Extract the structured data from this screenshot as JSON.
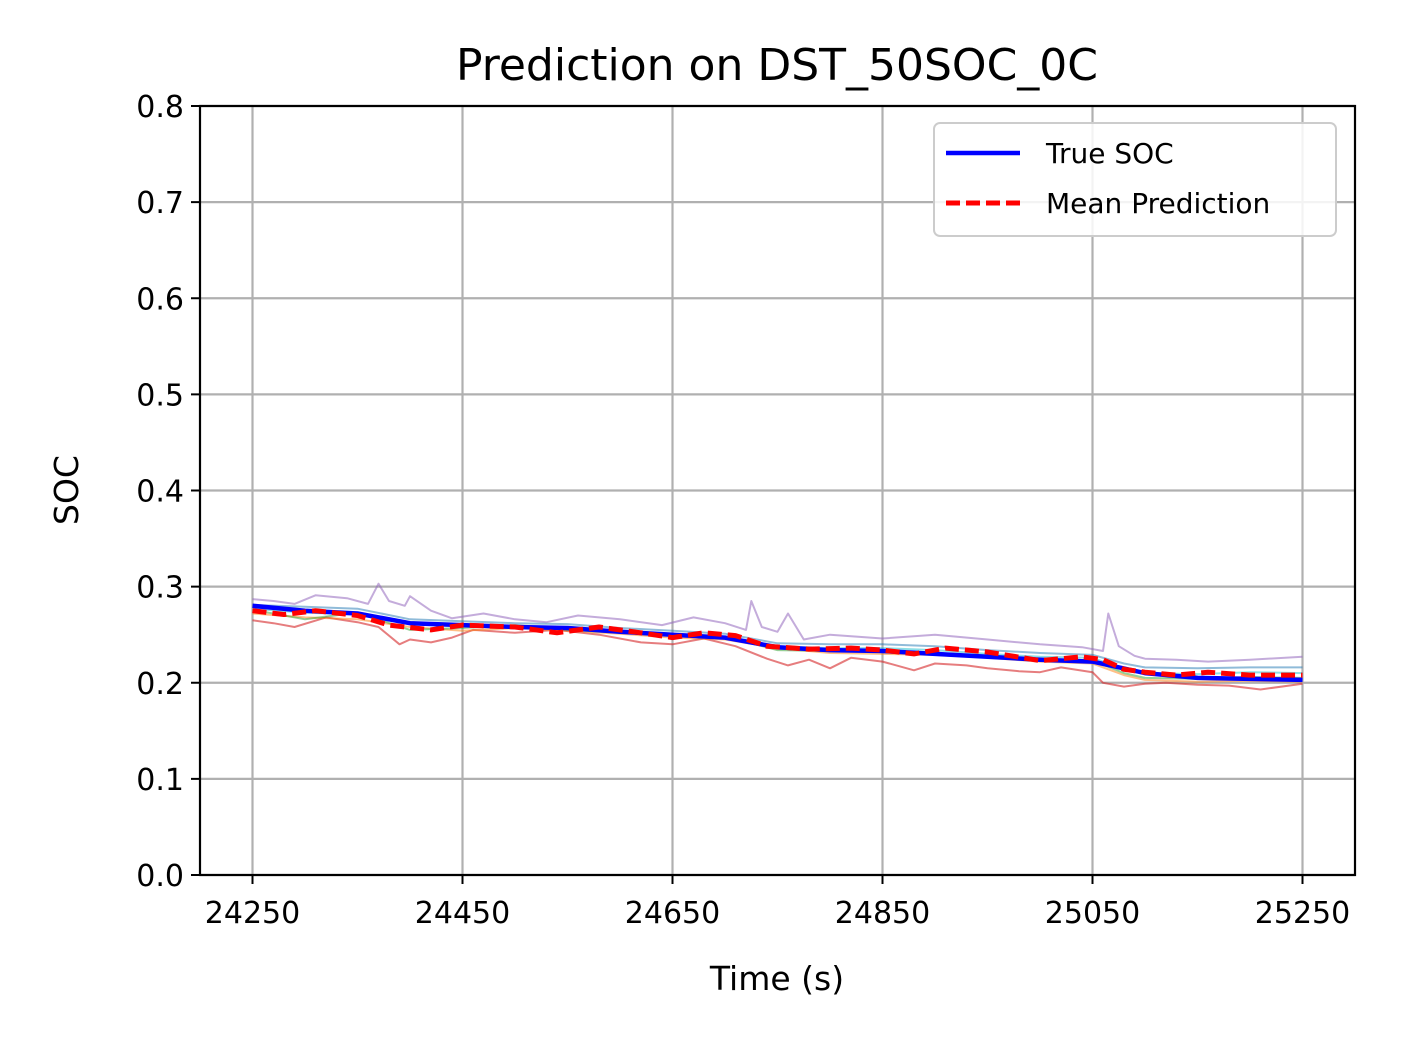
{
  "chart_data": {
    "type": "line",
    "title": "Prediction on DST_50SOC_0C",
    "xlabel": "Time (s)",
    "ylabel": "SOC",
    "xlim": [
      24200,
      25300
    ],
    "ylim": [
      0.0,
      0.8
    ],
    "xticks": [
      24250,
      24450,
      24650,
      24850,
      25050,
      25250
    ],
    "xtick_labels": [
      "24250",
      "24450",
      "24650",
      "24850",
      "25050",
      "25250"
    ],
    "yticks": [
      0.0,
      0.1,
      0.2,
      0.3,
      0.4,
      0.5,
      0.6,
      0.7,
      0.8
    ],
    "ytick_labels": [
      "0.0",
      "0.1",
      "0.2",
      "0.3",
      "0.4",
      "0.5",
      "0.6",
      "0.7",
      "0.8"
    ],
    "grid": true,
    "legend_position": "top-right",
    "legend": [
      {
        "label": "True SOC",
        "color": "#0000ff",
        "style": "solid"
      },
      {
        "label": "Mean Prediction",
        "color": "#ff0000",
        "style": "dashed"
      }
    ],
    "series": [
      {
        "name": "True SOC",
        "color": "#0000ff",
        "style": "solid",
        "width": 4.5,
        "opacity": 1,
        "x": [
          24250,
          24300,
          24350,
          24400,
          24450,
          24500,
          24550,
          24600,
          24650,
          24700,
          24750,
          24800,
          24850,
          24900,
          24950,
          25000,
          25050,
          25100,
          25150,
          25200,
          25250
        ],
        "y": [
          0.28,
          0.275,
          0.272,
          0.262,
          0.26,
          0.258,
          0.257,
          0.253,
          0.25,
          0.247,
          0.237,
          0.234,
          0.233,
          0.23,
          0.227,
          0.224,
          0.222,
          0.21,
          0.205,
          0.204,
          0.203
        ]
      },
      {
        "name": "Mean Prediction",
        "color": "#ff0000",
        "style": "dashed",
        "width": 5,
        "opacity": 1,
        "x": [
          24250,
          24280,
          24310,
          24350,
          24380,
          24420,
          24450,
          24500,
          24540,
          24580,
          24620,
          24650,
          24680,
          24710,
          24740,
          24780,
          24820,
          24850,
          24880,
          24910,
          24950,
          25000,
          25040,
          25060,
          25080,
          25100,
          25130,
          25160,
          25200,
          25250
        ],
        "y": [
          0.275,
          0.271,
          0.275,
          0.27,
          0.26,
          0.255,
          0.26,
          0.258,
          0.252,
          0.258,
          0.252,
          0.247,
          0.252,
          0.249,
          0.238,
          0.235,
          0.236,
          0.234,
          0.23,
          0.236,
          0.232,
          0.223,
          0.227,
          0.224,
          0.214,
          0.211,
          0.208,
          0.211,
          0.208,
          0.208
        ]
      },
      {
        "name": "",
        "color": "#9467bd",
        "style": "solid",
        "width": 2,
        "opacity": 0.55,
        "x": [
          24250,
          24270,
          24290,
          24310,
          24340,
          24360,
          24370,
          24380,
          24395,
          24400,
          24420,
          24440,
          24470,
          24500,
          24530,
          24560,
          24600,
          24640,
          24670,
          24700,
          24720,
          24725,
          24735,
          24750,
          24760,
          24775,
          24800,
          24850,
          24900,
          24950,
          25000,
          25040,
          25060,
          25065,
          25075,
          25090,
          25100,
          25130,
          25160,
          25200,
          25250
        ],
        "y": [
          0.287,
          0.285,
          0.282,
          0.291,
          0.288,
          0.282,
          0.303,
          0.285,
          0.28,
          0.29,
          0.275,
          0.267,
          0.272,
          0.266,
          0.263,
          0.27,
          0.266,
          0.26,
          0.268,
          0.262,
          0.255,
          0.285,
          0.258,
          0.253,
          0.272,
          0.245,
          0.25,
          0.246,
          0.25,
          0.245,
          0.24,
          0.237,
          0.233,
          0.272,
          0.238,
          0.228,
          0.225,
          0.224,
          0.222,
          0.224,
          0.227
        ]
      },
      {
        "name": "",
        "color": "#d62728",
        "style": "solid",
        "width": 2,
        "opacity": 0.6,
        "x": [
          24250,
          24270,
          24290,
          24320,
          24350,
          24370,
          24390,
          24400,
          24420,
          24440,
          24460,
          24500,
          24540,
          24580,
          24620,
          24650,
          24680,
          24710,
          24740,
          24760,
          24780,
          24800,
          24820,
          24850,
          24880,
          24900,
          24930,
          24950,
          24980,
          25000,
          25020,
          25050,
          25060,
          25080,
          25100,
          25120,
          25150,
          25180,
          25210,
          25250
        ],
        "y": [
          0.265,
          0.262,
          0.258,
          0.268,
          0.263,
          0.258,
          0.24,
          0.245,
          0.242,
          0.247,
          0.255,
          0.252,
          0.255,
          0.25,
          0.242,
          0.24,
          0.246,
          0.238,
          0.225,
          0.218,
          0.224,
          0.215,
          0.226,
          0.222,
          0.213,
          0.22,
          0.218,
          0.215,
          0.212,
          0.211,
          0.216,
          0.211,
          0.2,
          0.196,
          0.199,
          0.2,
          0.198,
          0.197,
          0.193,
          0.199
        ]
      },
      {
        "name": "",
        "color": "#ff7f0e",
        "style": "solid",
        "width": 2,
        "opacity": 0.5,
        "x": [
          24250,
          24300,
          24350,
          24400,
          24450,
          24500,
          24550,
          24600,
          24650,
          24700,
          24750,
          24800,
          24850,
          24900,
          24950,
          25000,
          25050,
          25080,
          25100,
          25150,
          25200,
          25250
        ],
        "y": [
          0.272,
          0.268,
          0.266,
          0.258,
          0.254,
          0.257,
          0.254,
          0.251,
          0.247,
          0.245,
          0.236,
          0.231,
          0.23,
          0.229,
          0.226,
          0.222,
          0.22,
          0.208,
          0.203,
          0.201,
          0.202,
          0.201
        ]
      },
      {
        "name": "",
        "color": "#2ca02c",
        "style": "solid",
        "width": 2,
        "opacity": 0.5,
        "x": [
          24250,
          24300,
          24350,
          24400,
          24450,
          24500,
          24550,
          24600,
          24650,
          24700,
          24750,
          24800,
          24850,
          24900,
          24950,
          25000,
          25050,
          25080,
          25100,
          25150,
          25200,
          25250
        ],
        "y": [
          0.276,
          0.266,
          0.273,
          0.255,
          0.257,
          0.26,
          0.255,
          0.252,
          0.249,
          0.248,
          0.234,
          0.233,
          0.232,
          0.231,
          0.228,
          0.223,
          0.223,
          0.21,
          0.205,
          0.204,
          0.206,
          0.205
        ]
      },
      {
        "name": "",
        "color": "#1f77b4",
        "style": "solid",
        "width": 2,
        "opacity": 0.5,
        "x": [
          24250,
          24300,
          24350,
          24400,
          24450,
          24500,
          24550,
          24600,
          24650,
          24700,
          24750,
          24800,
          24850,
          24900,
          24950,
          25000,
          25050,
          25080,
          25100,
          25150,
          25200,
          25250
        ],
        "y": [
          0.281,
          0.279,
          0.277,
          0.266,
          0.264,
          0.262,
          0.261,
          0.257,
          0.254,
          0.251,
          0.241,
          0.24,
          0.24,
          0.238,
          0.234,
          0.231,
          0.229,
          0.22,
          0.216,
          0.215,
          0.216,
          0.216
        ]
      },
      {
        "name": "",
        "color": "#17becf",
        "style": "solid",
        "width": 2,
        "opacity": 0.5,
        "x": [
          24250,
          24300,
          24350,
          24400,
          24450,
          24500,
          24550,
          24600,
          24650,
          24700,
          24750,
          24800,
          24850,
          24900,
          24950,
          25000,
          25050,
          25080,
          25100,
          25150,
          25200,
          25250
        ],
        "y": [
          0.277,
          0.273,
          0.271,
          0.261,
          0.259,
          0.258,
          0.257,
          0.253,
          0.25,
          0.247,
          0.238,
          0.236,
          0.236,
          0.234,
          0.23,
          0.227,
          0.226,
          0.214,
          0.21,
          0.209,
          0.211,
          0.21
        ]
      }
    ]
  }
}
